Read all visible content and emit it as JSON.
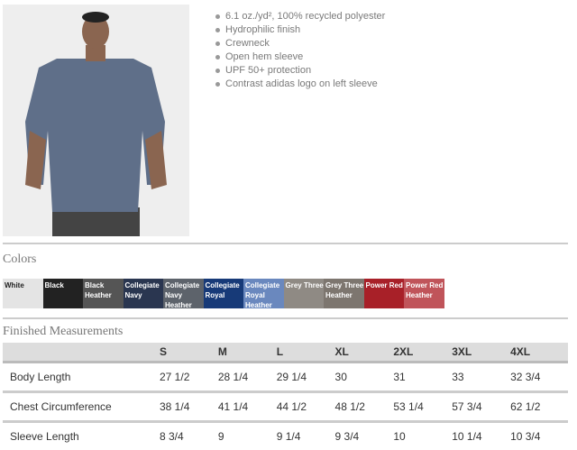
{
  "features": [
    "6.1 oz./yd², 100% recycled polyester",
    "Hydrophilic finish",
    "Crewneck",
    "Open hem sleeve",
    "UPF 50+ protection",
    "Contrast adidas logo on left sleeve"
  ],
  "colors_title": "Colors",
  "colors": [
    {
      "name": "White",
      "hex": "#e4e4e4",
      "text": "#222"
    },
    {
      "name": "Black",
      "hex": "#222222",
      "text": "#fff"
    },
    {
      "name": "Black Heather",
      "hex": "#555555",
      "text": "#fff"
    },
    {
      "name": "Collegiate Navy",
      "hex": "#2a3650",
      "text": "#fff"
    },
    {
      "name": "Collegiate Navy Heather",
      "hex": "#5d636b",
      "text": "#fff"
    },
    {
      "name": "Collegiate Royal",
      "hex": "#173a78",
      "text": "#fff"
    },
    {
      "name": "Collegiate Royal Heather",
      "hex": "#6a88be",
      "text": "#fff"
    },
    {
      "name": "Grey Three",
      "hex": "#8f8a84",
      "text": "#fff"
    },
    {
      "name": "Grey Three Heather",
      "hex": "#7d766f",
      "text": "#fff"
    },
    {
      "name": "Power Red",
      "hex": "#a82028",
      "text": "#fff"
    },
    {
      "name": "Power Red Heather",
      "hex": "#c0545a",
      "text": "#fff"
    }
  ],
  "measurements_title": "Finished Measurements",
  "sizes": [
    "S",
    "M",
    "L",
    "XL",
    "2XL",
    "3XL",
    "4XL"
  ],
  "rows": [
    {
      "label": "Body Length",
      "values": [
        "27 1/2",
        "28 1/4",
        "29 1/4",
        "30",
        "31",
        "33",
        "32 3/4"
      ]
    },
    {
      "label": "Chest Circumference",
      "values": [
        "38 1/4",
        "41 1/4",
        "44 1/2",
        "48 1/2",
        "53 1/4",
        "57 3/4",
        "62 1/2"
      ]
    },
    {
      "label": "Sleeve Length",
      "values": [
        "8 3/4",
        "9",
        "9 1/4",
        "9 3/4",
        "10",
        "10 1/4",
        "10 3/4"
      ]
    }
  ]
}
